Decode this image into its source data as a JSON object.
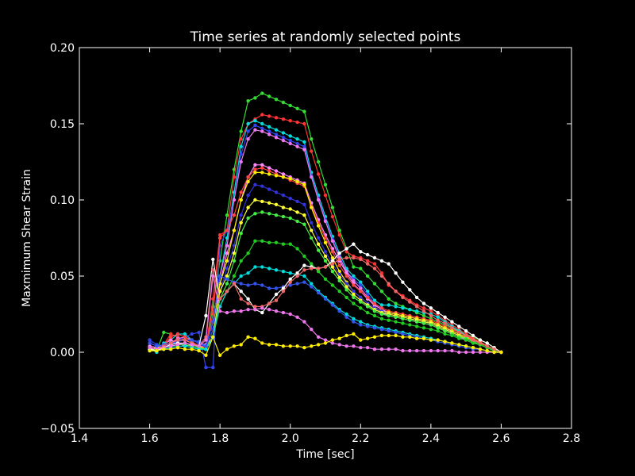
{
  "chart_data": {
    "type": "line",
    "title": "Time series at randomly selected points",
    "xlabel": "Time [sec]",
    "ylabel": "Maxmimum Shear Strain",
    "xlim": [
      1.4,
      2.8
    ],
    "ylim": [
      -0.05,
      0.2
    ],
    "xticks": [
      "1.4",
      "1.6",
      "1.8",
      "2.0",
      "2.2",
      "2.4",
      "2.6",
      "2.8"
    ],
    "yticks": [
      "−0.05",
      "0.00",
      "0.05",
      "0.10",
      "0.15",
      "0.20"
    ],
    "grid": false,
    "legend": "none",
    "background": "#000000",
    "foreground": "#ffffff",
    "x": [
      1.6,
      1.62,
      1.64,
      1.66,
      1.68,
      1.7,
      1.72,
      1.74,
      1.76,
      1.78,
      1.8,
      1.82,
      1.84,
      1.86,
      1.88,
      1.9,
      1.92,
      1.94,
      1.96,
      1.98,
      2.0,
      2.02,
      2.04,
      2.06,
      2.08,
      2.1,
      2.12,
      2.14,
      2.16,
      2.18,
      2.2,
      2.22,
      2.24,
      2.26,
      2.28,
      2.3,
      2.32,
      2.34,
      2.36,
      2.38,
      2.4,
      2.42,
      2.44,
      2.46,
      2.48,
      2.5,
      2.52,
      2.54,
      2.56,
      2.58,
      2.6
    ],
    "series": [
      {
        "color": "#33dd33",
        "values": [
          0.002,
          0.001,
          0.013,
          0.012,
          0.01,
          0.008,
          0.006,
          0.003,
          0.004,
          0.03,
          0.06,
          0.09,
          0.12,
          0.145,
          0.165,
          0.167,
          0.17,
          0.168,
          0.166,
          0.164,
          0.162,
          0.16,
          0.158,
          0.14,
          0.125,
          0.11,
          0.095,
          0.08,
          0.068,
          0.056,
          0.055,
          0.05,
          0.045,
          0.04,
          0.035,
          0.032,
          0.03,
          0.028,
          0.026,
          0.024,
          0.022,
          0.02,
          0.018,
          0.016,
          0.014,
          0.012,
          0.01,
          0.008,
          0.006,
          0.003,
          0.0
        ]
      },
      {
        "color": "#ff3333",
        "values": [
          0.003,
          0.002,
          0.005,
          0.012,
          0.01,
          0.008,
          0.006,
          0.004,
          0.003,
          0.035,
          0.077,
          0.08,
          0.115,
          0.14,
          0.15,
          0.153,
          0.156,
          0.155,
          0.154,
          0.153,
          0.152,
          0.151,
          0.15,
          0.132,
          0.117,
          0.103,
          0.089,
          0.077,
          0.066,
          0.063,
          0.062,
          0.06,
          0.058,
          0.052,
          0.044,
          0.04,
          0.037,
          0.034,
          0.031,
          0.029,
          0.027,
          0.024,
          0.021,
          0.018,
          0.015,
          0.012,
          0.009,
          0.006,
          0.004,
          0.002,
          0.0
        ]
      },
      {
        "color": "#00dddd",
        "values": [
          0.002,
          0.0,
          0.006,
          0.008,
          0.012,
          0.012,
          0.008,
          0.006,
          0.004,
          0.02,
          0.05,
          0.075,
          0.105,
          0.135,
          0.15,
          0.152,
          0.15,
          0.148,
          0.146,
          0.144,
          0.142,
          0.14,
          0.138,
          0.118,
          0.103,
          0.089,
          0.076,
          0.065,
          0.055,
          0.05,
          0.046,
          0.04,
          0.034,
          0.031,
          0.031,
          0.03,
          0.029,
          0.028,
          0.027,
          0.026,
          0.025,
          0.023,
          0.02,
          0.017,
          0.014,
          0.011,
          0.008,
          0.006,
          0.004,
          0.002,
          0.0
        ]
      },
      {
        "color": "#3344ee",
        "values": [
          0.008,
          0.005,
          0.004,
          0.006,
          0.008,
          0.01,
          0.012,
          0.013,
          -0.01,
          -0.01,
          0.07,
          0.08,
          0.1,
          0.13,
          0.145,
          0.149,
          0.147,
          0.145,
          0.143,
          0.141,
          0.139,
          0.137,
          0.135,
          0.116,
          0.101,
          0.087,
          0.074,
          0.063,
          0.053,
          0.048,
          0.044,
          0.038,
          0.032,
          0.028,
          0.026,
          0.025,
          0.024,
          0.023,
          0.022,
          0.021,
          0.02,
          0.018,
          0.016,
          0.013,
          0.011,
          0.009,
          0.007,
          0.005,
          0.003,
          0.001,
          0.0
        ]
      },
      {
        "color": "#ee77ee",
        "values": [
          0.004,
          0.003,
          0.002,
          0.006,
          0.009,
          0.01,
          0.008,
          0.006,
          0.005,
          0.02,
          0.05,
          0.07,
          0.1,
          0.125,
          0.14,
          0.146,
          0.145,
          0.143,
          0.141,
          0.139,
          0.137,
          0.135,
          0.133,
          0.115,
          0.1,
          0.086,
          0.073,
          0.062,
          0.053,
          0.047,
          0.042,
          0.036,
          0.03,
          0.026,
          0.024,
          0.023,
          0.022,
          0.021,
          0.02,
          0.019,
          0.018,
          0.016,
          0.014,
          0.012,
          0.01,
          0.008,
          0.006,
          0.005,
          0.003,
          0.001,
          0.0
        ]
      },
      {
        "color": "#ff88ff",
        "values": [
          0.004,
          0.003,
          0.005,
          0.008,
          0.006,
          0.004,
          0.005,
          0.004,
          0.004,
          0.01,
          0.045,
          0.065,
          0.08,
          0.1,
          0.115,
          0.123,
          0.123,
          0.121,
          0.119,
          0.117,
          0.115,
          0.113,
          0.111,
          0.098,
          0.087,
          0.077,
          0.068,
          0.06,
          0.052,
          0.045,
          0.04,
          0.035,
          0.031,
          0.028,
          0.026,
          0.025,
          0.024,
          0.023,
          0.022,
          0.021,
          0.02,
          0.018,
          0.016,
          0.014,
          0.012,
          0.01,
          0.008,
          0.006,
          0.004,
          0.002,
          0.0
        ]
      },
      {
        "color": "#ff4444",
        "values": [
          0.003,
          0.002,
          0.004,
          0.01,
          0.012,
          0.01,
          0.007,
          0.004,
          0.003,
          0.025,
          0.075,
          0.08,
          0.09,
          0.105,
          0.115,
          0.12,
          0.121,
          0.119,
          0.117,
          0.115,
          0.113,
          0.111,
          0.109,
          0.096,
          0.085,
          0.075,
          0.066,
          0.057,
          0.05,
          0.044,
          0.04,
          0.036,
          0.032,
          0.029,
          0.027,
          0.026,
          0.025,
          0.024,
          0.023,
          0.022,
          0.021,
          0.019,
          0.017,
          0.015,
          0.013,
          0.011,
          0.009,
          0.007,
          0.004,
          0.002,
          0.0
        ]
      },
      {
        "color": "#ffee00",
        "values": [
          0.002,
          0.003,
          0.004,
          0.006,
          0.008,
          0.008,
          0.006,
          0.004,
          0.002,
          0.015,
          0.045,
          0.06,
          0.08,
          0.1,
          0.112,
          0.118,
          0.118,
          0.117,
          0.116,
          0.115,
          0.114,
          0.112,
          0.11,
          0.095,
          0.083,
          0.072,
          0.062,
          0.053,
          0.046,
          0.04,
          0.036,
          0.032,
          0.029,
          0.027,
          0.026,
          0.025,
          0.024,
          0.023,
          0.022,
          0.021,
          0.02,
          0.018,
          0.016,
          0.014,
          0.012,
          0.01,
          0.008,
          0.006,
          0.004,
          0.002,
          0.0
        ]
      },
      {
        "color": "#3333dd",
        "values": [
          0.006,
          0.004,
          0.004,
          0.005,
          0.007,
          0.008,
          0.008,
          0.006,
          0.003,
          0.015,
          0.04,
          0.055,
          0.07,
          0.09,
          0.103,
          0.11,
          0.109,
          0.107,
          0.105,
          0.103,
          0.101,
          0.099,
          0.097,
          0.085,
          0.075,
          0.066,
          0.058,
          0.051,
          0.045,
          0.04,
          0.036,
          0.032,
          0.029,
          0.027,
          0.025,
          0.024,
          0.023,
          0.022,
          0.021,
          0.02,
          0.019,
          0.017,
          0.015,
          0.013,
          0.011,
          0.009,
          0.007,
          0.005,
          0.003,
          0.001,
          0.0
        ]
      },
      {
        "color": "#ffff33",
        "values": [
          0.002,
          0.002,
          0.003,
          0.004,
          0.005,
          0.005,
          0.004,
          0.003,
          0.002,
          0.01,
          0.04,
          0.05,
          0.065,
          0.085,
          0.095,
          0.1,
          0.099,
          0.098,
          0.097,
          0.095,
          0.094,
          0.092,
          0.09,
          0.08,
          0.071,
          0.063,
          0.056,
          0.049,
          0.043,
          0.038,
          0.034,
          0.031,
          0.028,
          0.026,
          0.025,
          0.024,
          0.023,
          0.022,
          0.021,
          0.02,
          0.019,
          0.017,
          0.015,
          0.013,
          0.011,
          0.009,
          0.007,
          0.005,
          0.003,
          0.001,
          0.0
        ]
      },
      {
        "color": "#44ee44",
        "values": [
          0.001,
          0.002,
          0.003,
          0.004,
          0.005,
          0.005,
          0.004,
          0.003,
          0.002,
          0.01,
          0.035,
          0.045,
          0.06,
          0.078,
          0.088,
          0.091,
          0.092,
          0.091,
          0.09,
          0.089,
          0.088,
          0.086,
          0.084,
          0.075,
          0.067,
          0.06,
          0.053,
          0.047,
          0.041,
          0.036,
          0.033,
          0.03,
          0.027,
          0.025,
          0.024,
          0.023,
          0.022,
          0.021,
          0.02,
          0.019,
          0.018,
          0.016,
          0.014,
          0.012,
          0.01,
          0.009,
          0.007,
          0.005,
          0.003,
          0.001,
          0.0
        ]
      },
      {
        "color": "#22cc22",
        "values": [
          0.001,
          0.001,
          0.002,
          0.003,
          0.004,
          0.004,
          0.003,
          0.002,
          0.002,
          0.01,
          0.03,
          0.04,
          0.05,
          0.06,
          0.065,
          0.073,
          0.073,
          0.072,
          0.072,
          0.071,
          0.071,
          0.068,
          0.063,
          0.058,
          0.053,
          0.048,
          0.044,
          0.04,
          0.036,
          0.032,
          0.029,
          0.026,
          0.024,
          0.022,
          0.021,
          0.02,
          0.019,
          0.018,
          0.017,
          0.016,
          0.015,
          0.014,
          0.012,
          0.011,
          0.009,
          0.008,
          0.006,
          0.005,
          0.003,
          0.001,
          0.0
        ]
      },
      {
        "color": "#00dddd",
        "values": [
          0.002,
          0.001,
          0.002,
          0.003,
          0.004,
          0.004,
          0.003,
          0.002,
          0.002,
          0.01,
          0.03,
          0.04,
          0.045,
          0.05,
          0.052,
          0.056,
          0.056,
          0.055,
          0.054,
          0.053,
          0.052,
          0.051,
          0.05,
          0.045,
          0.04,
          0.036,
          0.032,
          0.028,
          0.025,
          0.022,
          0.02,
          0.018,
          0.017,
          0.016,
          0.015,
          0.014,
          0.013,
          0.012,
          0.011,
          0.01,
          0.009,
          0.008,
          0.007,
          0.006,
          0.005,
          0.004,
          0.003,
          0.002,
          0.001,
          0.0,
          0.0
        ]
      },
      {
        "color": "#3355ee",
        "values": [
          0.006,
          0.004,
          0.005,
          0.006,
          0.007,
          0.008,
          0.008,
          0.007,
          0.004,
          0.02,
          0.05,
          0.048,
          0.046,
          0.045,
          0.044,
          0.045,
          0.044,
          0.042,
          0.042,
          0.043,
          0.044,
          0.045,
          0.046,
          0.043,
          0.039,
          0.035,
          0.031,
          0.027,
          0.023,
          0.02,
          0.018,
          0.017,
          0.016,
          0.015,
          0.014,
          0.013,
          0.012,
          0.011,
          0.01,
          0.009,
          0.008,
          0.007,
          0.006,
          0.005,
          0.004,
          0.003,
          0.002,
          0.002,
          0.001,
          0.0,
          0.0
        ]
      },
      {
        "color": "#ffffff",
        "values": [
          0.002,
          0.001,
          0.003,
          0.005,
          0.006,
          0.006,
          0.005,
          0.004,
          0.024,
          0.061,
          0.035,
          0.04,
          0.045,
          0.04,
          0.035,
          0.028,
          0.026,
          0.032,
          0.038,
          0.042,
          0.048,
          0.052,
          0.057,
          0.056,
          0.055,
          0.056,
          0.06,
          0.065,
          0.068,
          0.071,
          0.066,
          0.064,
          0.062,
          0.06,
          0.058,
          0.052,
          0.046,
          0.041,
          0.036,
          0.032,
          0.029,
          0.026,
          0.023,
          0.02,
          0.017,
          0.014,
          0.011,
          0.008,
          0.006,
          0.003,
          0.0
        ]
      },
      {
        "color": "#ee6666",
        "values": [
          0.003,
          0.002,
          0.004,
          0.006,
          0.008,
          0.008,
          0.006,
          0.004,
          0.01,
          0.054,
          0.035,
          0.04,
          0.045,
          0.035,
          0.032,
          0.03,
          0.03,
          0.032,
          0.034,
          0.04,
          0.046,
          0.05,
          0.054,
          0.055,
          0.055,
          0.056,
          0.058,
          0.061,
          0.062,
          0.062,
          0.061,
          0.058,
          0.055,
          0.05,
          0.045,
          0.04,
          0.036,
          0.033,
          0.03,
          0.027,
          0.024,
          0.021,
          0.019,
          0.016,
          0.013,
          0.011,
          0.008,
          0.006,
          0.004,
          0.002,
          0.0
        ]
      },
      {
        "color": "#ee77ee",
        "values": [
          0.003,
          0.002,
          0.003,
          0.004,
          0.005,
          0.006,
          0.005,
          0.004,
          0.008,
          0.05,
          0.027,
          0.026,
          0.027,
          0.027,
          0.028,
          0.028,
          0.029,
          0.028,
          0.027,
          0.026,
          0.025,
          0.023,
          0.02,
          0.015,
          0.01,
          0.008,
          0.006,
          0.005,
          0.004,
          0.004,
          0.003,
          0.003,
          0.002,
          0.002,
          0.002,
          0.002,
          0.001,
          0.001,
          0.001,
          0.001,
          0.001,
          0.001,
          0.001,
          0.001,
          0.0,
          0.0,
          0.0,
          0.0,
          0.0,
          0.0,
          0.0
        ]
      },
      {
        "color": "#ffee00",
        "values": [
          0.001,
          0.001,
          0.002,
          0.002,
          0.003,
          0.002,
          0.002,
          0.001,
          -0.002,
          0.01,
          -0.002,
          0.002,
          0.004,
          0.005,
          0.01,
          0.009,
          0.006,
          0.005,
          0.005,
          0.004,
          0.004,
          0.004,
          0.003,
          0.004,
          0.005,
          0.006,
          0.008,
          0.009,
          0.011,
          0.012,
          0.008,
          0.009,
          0.01,
          0.011,
          0.011,
          0.011,
          0.01,
          0.01,
          0.009,
          0.009,
          0.008,
          0.008,
          0.007,
          0.006,
          0.005,
          0.004,
          0.003,
          0.002,
          0.001,
          0.0,
          0.0
        ]
      }
    ]
  }
}
